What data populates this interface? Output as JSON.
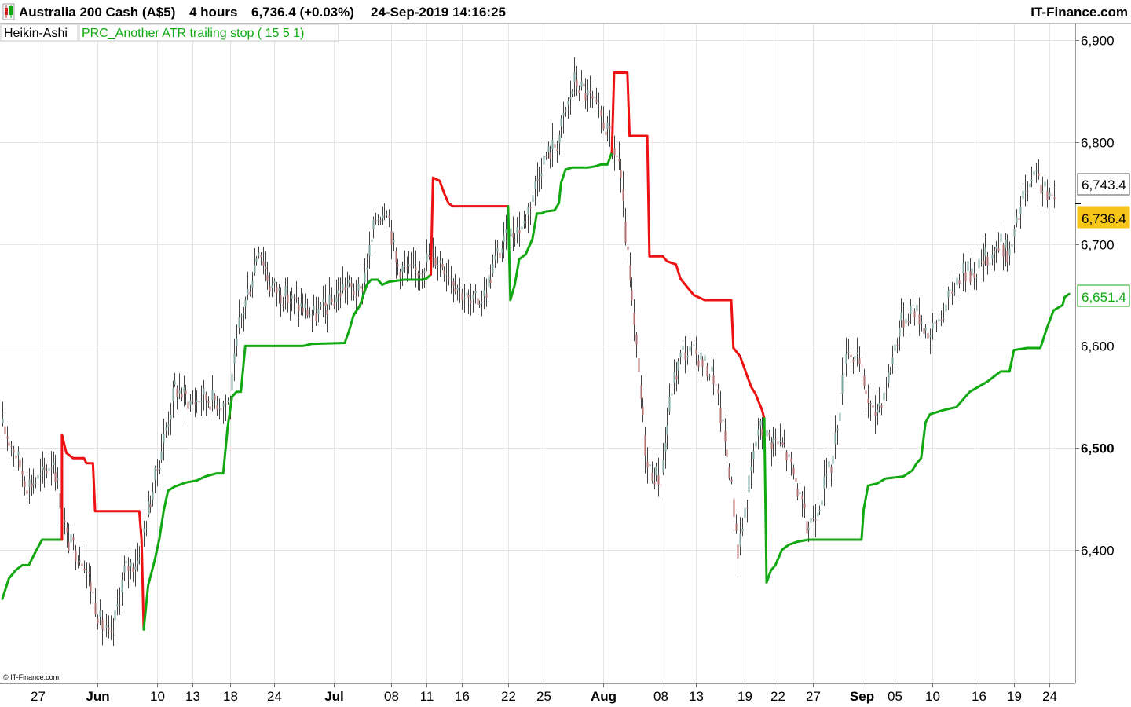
{
  "header": {
    "instrument": "Australia 200 Cash (A$5)",
    "timeframe": "4 hours",
    "last_quote": "6,736.4 (+0.03%)",
    "datetime": "24-Sep-2019 14:16:25",
    "brand": "IT-Finance.com"
  },
  "legend": {
    "candles_label": "Heikin-Ashi",
    "indicator_label": "PRC_Another ATR trailing stop ( 15 5 1)"
  },
  "copyright": "© IT-Finance.com",
  "colors": {
    "background": "#ffffff",
    "grid": "#e6e6e6",
    "stop_up": "#11a811",
    "stop_down": "#ee1111",
    "candle_wick": "#444444",
    "badge_last": "#f5c518",
    "badge_indicator_border": "#11a811"
  },
  "badges": {
    "high": "6,743.4",
    "last": "6,736.4",
    "indicator": "6,651.4"
  },
  "chart_data": {
    "type": "line",
    "y_axis": {
      "range": [
        6275,
        6925
      ],
      "ticks": [
        {
          "value": 6900,
          "label": "6,900",
          "bold": false
        },
        {
          "value": 6800,
          "label": "6,800",
          "bold": false
        },
        {
          "value": 6700,
          "label": "6,700",
          "bold": false
        },
        {
          "value": 6600,
          "label": "6,600",
          "bold": false
        },
        {
          "value": 6500,
          "label": "6,500",
          "bold": true
        },
        {
          "value": 6400,
          "label": "6,400",
          "bold": false
        }
      ]
    },
    "x_axis": {
      "range_bars": [
        0,
        480
      ],
      "ticks": [
        {
          "bar": 16,
          "label": "27",
          "bold": false
        },
        {
          "bar": 43,
          "label": "Jun",
          "bold": true
        },
        {
          "bar": 70,
          "label": "10",
          "bold": false
        },
        {
          "bar": 86,
          "label": "13",
          "bold": false
        },
        {
          "bar": 103,
          "label": "18",
          "bold": false
        },
        {
          "bar": 123,
          "label": "24",
          "bold": false
        },
        {
          "bar": 150,
          "label": "Jul",
          "bold": true
        },
        {
          "bar": 176,
          "label": "08",
          "bold": false
        },
        {
          "bar": 192,
          "label": "11",
          "bold": false
        },
        {
          "bar": 208,
          "label": "16",
          "bold": false
        },
        {
          "bar": 229,
          "label": "22",
          "bold": false
        },
        {
          "bar": 245,
          "label": "25",
          "bold": false
        },
        {
          "bar": 272,
          "label": "Aug",
          "bold": true
        },
        {
          "bar": 298,
          "label": "08",
          "bold": false
        },
        {
          "bar": 314,
          "label": "13",
          "bold": false
        },
        {
          "bar": 336,
          "label": "19",
          "bold": false
        },
        {
          "bar": 351,
          "label": "22",
          "bold": false
        },
        {
          "bar": 367,
          "label": "27",
          "bold": false
        },
        {
          "bar": 389,
          "label": "Sep",
          "bold": true
        },
        {
          "bar": 404,
          "label": "05",
          "bold": false
        },
        {
          "bar": 421,
          "label": "10",
          "bold": false
        },
        {
          "bar": 442,
          "label": "16",
          "bold": false
        },
        {
          "bar": 458,
          "label": "19",
          "bold": false
        },
        {
          "bar": 474,
          "label": "24",
          "bold": false
        }
      ]
    },
    "price_path": [
      [
        0,
        6520
      ],
      [
        5,
        6500
      ],
      [
        11,
        6465
      ],
      [
        17,
        6470
      ],
      [
        23,
        6490
      ],
      [
        29,
        6410
      ],
      [
        37,
        6390
      ],
      [
        44,
        6330
      ],
      [
        49,
        6310
      ],
      [
        55,
        6380
      ],
      [
        61,
        6390
      ],
      [
        66,
        6440
      ],
      [
        72,
        6500
      ],
      [
        78,
        6560
      ],
      [
        85,
        6545
      ],
      [
        91,
        6550
      ],
      [
        99,
        6545
      ],
      [
        103,
        6545
      ],
      [
        107,
        6620
      ],
      [
        112,
        6660
      ],
      [
        116,
        6700
      ],
      [
        121,
        6660
      ],
      [
        127,
        6650
      ],
      [
        134,
        6640
      ],
      [
        141,
        6630
      ],
      [
        148,
        6640
      ],
      [
        155,
        6660
      ],
      [
        162,
        6650
      ],
      [
        169,
        6725
      ],
      [
        174,
        6740
      ],
      [
        178,
        6680
      ],
      [
        186,
        6670
      ],
      [
        194,
        6690
      ],
      [
        200,
        6680
      ],
      [
        206,
        6660
      ],
      [
        212,
        6640
      ],
      [
        218,
        6650
      ],
      [
        224,
        6690
      ],
      [
        230,
        6710
      ],
      [
        236,
        6720
      ],
      [
        244,
        6780
      ],
      [
        251,
        6800
      ],
      [
        259,
        6860
      ],
      [
        265,
        6845
      ],
      [
        272,
        6820
      ],
      [
        279,
        6780
      ],
      [
        284,
        6660
      ],
      [
        288,
        6570
      ],
      [
        292,
        6480
      ],
      [
        298,
        6470
      ],
      [
        303,
        6560
      ],
      [
        308,
        6595
      ],
      [
        315,
        6590
      ],
      [
        322,
        6570
      ],
      [
        329,
        6480
      ],
      [
        333,
        6400
      ],
      [
        337,
        6450
      ],
      [
        342,
        6520
      ],
      [
        347,
        6510
      ],
      [
        354,
        6500
      ],
      [
        360,
        6460
      ],
      [
        364,
        6420
      ],
      [
        370,
        6450
      ],
      [
        376,
        6490
      ],
      [
        382,
        6600
      ],
      [
        388,
        6580
      ],
      [
        394,
        6530
      ],
      [
        400,
        6560
      ],
      [
        406,
        6620
      ],
      [
        412,
        6640
      ],
      [
        420,
        6610
      ],
      [
        427,
        6640
      ],
      [
        433,
        6670
      ],
      [
        440,
        6675
      ],
      [
        447,
        6690
      ],
      [
        452,
        6700
      ],
      [
        456,
        6690
      ],
      [
        462,
        6745
      ],
      [
        468,
        6765
      ],
      [
        472,
        6750
      ],
      [
        476,
        6740
      ]
    ],
    "series": [
      {
        "name": "PRC_Another ATR trailing stop ( 15 5 1)",
        "segments": [
          {
            "trend": "up",
            "points": [
              [
                0,
                6352
              ],
              [
                3,
                6372
              ],
              [
                6,
                6380
              ],
              [
                9,
                6385
              ],
              [
                12,
                6385
              ],
              [
                15,
                6398
              ],
              [
                18,
                6410
              ],
              [
                24,
                6410
              ],
              [
                27,
                6410
              ]
            ]
          },
          {
            "trend": "down",
            "points": [
              [
                27,
                6410
              ],
              [
                27,
                6513
              ],
              [
                29,
                6495
              ],
              [
                32,
                6490
              ],
              [
                37,
                6490
              ],
              [
                38,
                6485
              ],
              [
                41,
                6485
              ],
              [
                42,
                6438
              ],
              [
                60,
                6438
              ],
              [
                62,
                6438
              ],
              [
                63,
                6410
              ],
              [
                64,
                6322
              ]
            ]
          },
          {
            "trend": "up",
            "points": [
              [
                64,
                6322
              ],
              [
                66,
                6365
              ],
              [
                69,
                6390
              ],
              [
                71,
                6410
              ],
              [
                73,
                6438
              ],
              [
                75,
                6458
              ],
              [
                78,
                6462
              ],
              [
                83,
                6466
              ],
              [
                88,
                6468
              ],
              [
                92,
                6472
              ],
              [
                97,
                6475
              ],
              [
                100,
                6475
              ],
              [
                102,
                6520
              ],
              [
                104,
                6550
              ],
              [
                106,
                6555
              ],
              [
                108,
                6555
              ],
              [
                110,
                6600
              ],
              [
                114,
                6600
              ],
              [
                136,
                6600
              ],
              [
                140,
                6602
              ],
              [
                155,
                6603
              ],
              [
                157,
                6615
              ],
              [
                159,
                6630
              ],
              [
                162,
                6640
              ],
              [
                165,
                6660
              ],
              [
                167,
                6665
              ],
              [
                170,
                6665
              ],
              [
                172,
                6660
              ],
              [
                175,
                6663
              ],
              [
                182,
                6665
              ],
              [
                190,
                6665
              ],
              [
                192,
                6666
              ],
              [
                194,
                6670
              ]
            ]
          },
          {
            "trend": "down",
            "points": [
              [
                194,
                6670
              ],
              [
                195,
                6765
              ],
              [
                198,
                6762
              ],
              [
                200,
                6750
              ],
              [
                202,
                6740
              ],
              [
                204,
                6737
              ],
              [
                215,
                6737
              ],
              [
                229,
                6737
              ]
            ]
          },
          {
            "trend": "up",
            "points": [
              [
                229,
                6737
              ],
              [
                230,
                6645
              ],
              [
                232,
                6660
              ],
              [
                234,
                6685
              ],
              [
                237,
                6690
              ],
              [
                240,
                6705
              ],
              [
                242,
                6730
              ],
              [
                244,
                6730
              ],
              [
                246,
                6732
              ],
              [
                250,
                6733
              ],
              [
                252,
                6740
              ],
              [
                253,
                6760
              ],
              [
                255,
                6773
              ],
              [
                258,
                6775
              ],
              [
                265,
                6775
              ],
              [
                268,
                6776
              ],
              [
                271,
                6778
              ],
              [
                274,
                6778
              ],
              [
                276,
                6790
              ]
            ]
          },
          {
            "trend": "down",
            "points": [
              [
                276,
                6790
              ],
              [
                277,
                6868
              ],
              [
                283,
                6868
              ],
              [
                284,
                6806
              ],
              [
                292,
                6806
              ],
              [
                293,
                6688
              ],
              [
                299,
                6688
              ],
              [
                301,
                6683
              ],
              [
                305,
                6680
              ],
              [
                307,
                6666
              ],
              [
                310,
                6658
              ],
              [
                313,
                6650
              ],
              [
                318,
                6645
              ],
              [
                330,
                6645
              ],
              [
                331,
                6598
              ],
              [
                334,
                6590
              ],
              [
                337,
                6572
              ],
              [
                339,
                6560
              ],
              [
                341,
                6553
              ],
              [
                344,
                6537
              ],
              [
                345,
                6529
              ]
            ]
          },
          {
            "trend": "up",
            "points": [
              [
                345,
                6529
              ],
              [
                346,
                6368
              ],
              [
                348,
                6380
              ],
              [
                350,
                6385
              ],
              [
                353,
                6400
              ],
              [
                356,
                6405
              ],
              [
                360,
                6408
              ],
              [
                365,
                6410
              ],
              [
                380,
                6410
              ],
              [
                389,
                6410
              ],
              [
                390,
                6440
              ],
              [
                392,
                6463
              ],
              [
                396,
                6465
              ],
              [
                400,
                6470
              ],
              [
                408,
                6472
              ],
              [
                412,
                6478
              ],
              [
                414,
                6485
              ],
              [
                416,
                6490
              ],
              [
                418,
                6525
              ],
              [
                420,
                6533
              ],
              [
                423,
                6535
              ],
              [
                426,
                6537
              ],
              [
                432,
                6540
              ],
              [
                436,
                6550
              ],
              [
                438,
                6555
              ],
              [
                442,
                6560
              ],
              [
                446,
                6565
              ],
              [
                452,
                6575
              ],
              [
                456,
                6575
              ],
              [
                458,
                6596
              ],
              [
                464,
                6598
              ],
              [
                470,
                6598
              ],
              [
                473,
                6618
              ],
              [
                476,
                6635
              ],
              [
                480,
                6640
              ],
              [
                481,
                6648
              ],
              [
                483,
                6651
              ]
            ]
          }
        ]
      }
    ]
  }
}
